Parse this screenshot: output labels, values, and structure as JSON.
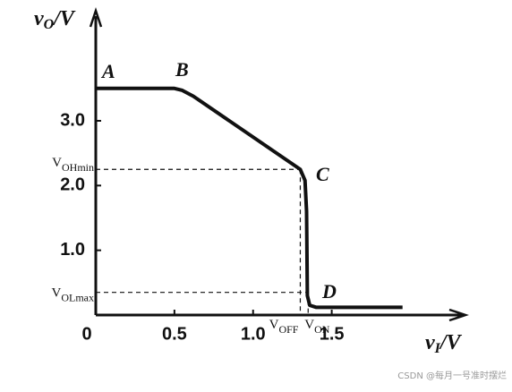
{
  "chart_data": {
    "type": "line",
    "y_label": {
      "var": "v",
      "sub": "O",
      "unit": "/V"
    },
    "x_label": {
      "var": "v",
      "sub": "I",
      "unit": "/V"
    },
    "x": [
      0,
      0.5,
      0.55,
      0.62,
      1.3,
      1.33,
      1.34,
      1.345,
      1.36,
      1.4,
      1.95
    ],
    "series": [
      {
        "color": "#111111",
        "values": [
          3.5,
          3.5,
          3.47,
          3.38,
          2.25,
          2.08,
          1.6,
          0.3,
          0.15,
          0.12,
          0.12
        ]
      }
    ],
    "xlim": [
      0,
      2.35
    ],
    "ylim": [
      0,
      4.7
    ],
    "xticks": [
      0,
      0.5,
      {
        "value": 1,
        "label": "1.0"
      },
      1.5
    ],
    "yticks": [
      {
        "value": 1,
        "label": "1.0"
      },
      {
        "value": 2,
        "label": "2.0"
      },
      {
        "value": 3,
        "label": "3.0"
      }
    ],
    "points": [
      "A",
      "B",
      "C",
      "D"
    ],
    "levels": {
      "voh_min": {
        "value": 2.25,
        "main": "V",
        "sub": "OHmin"
      },
      "vol_max": {
        "value": 0.35,
        "main": "V",
        "sub": "OLmax"
      },
      "v_off": {
        "value": 1.3,
        "main": "V",
        "sub": "OFF"
      },
      "v_on": {
        "value": 1.35,
        "main": "V",
        "sub": "ON"
      }
    },
    "watermark": "CSDN @每月一号准时摆烂"
  }
}
